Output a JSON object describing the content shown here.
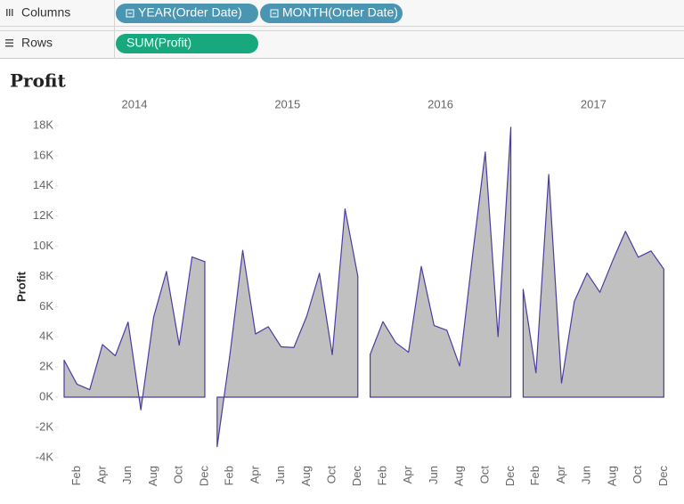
{
  "shelves": {
    "columns": {
      "label": "Columns",
      "pills": [
        "YEAR(Order Date)",
        "MONTH(Order Date)"
      ]
    },
    "rows": {
      "label": "Rows",
      "pills": [
        "SUM(Profit)"
      ]
    }
  },
  "chart_data": {
    "type": "area",
    "title": "Profit",
    "y_label": "Profit",
    "categories": [
      null,
      "Feb",
      null,
      "Apr",
      null,
      "Jun",
      null,
      "Aug",
      null,
      "Oct",
      null,
      "Dec"
    ],
    "series": [
      {
        "name": "2014",
        "values": [
          2450,
          862,
          499,
          3489,
          2739,
          4977,
          -841,
          5318,
          8328,
          3448,
          9292,
          8983
        ]
      },
      {
        "name": "2015",
        "values": [
          -3281,
          2813,
          9732,
          4188,
          4668,
          3336,
          3289,
          5356,
          8210,
          2817,
          12474,
          8016
        ]
      },
      {
        "name": "2016",
        "values": [
          2825,
          5004,
          3612,
          2977,
          8662,
          4750,
          4433,
          2063,
          9329,
          16243,
          4011,
          17885
        ]
      },
      {
        "name": "2017",
        "values": [
          7140,
          1613,
          14752,
          933,
          6342,
          8223,
          6952,
          9041,
          10991,
          9275,
          9690,
          8483
        ]
      }
    ],
    "color": "#4b3ca0",
    "fill": "#c0c0c0",
    "ylim": [
      -4400,
      18800
    ],
    "yticks": [
      {
        "value": -4000,
        "label": "-4K"
      },
      {
        "value": -2000,
        "label": "-2K"
      },
      {
        "value": 0,
        "label": "0K"
      },
      {
        "value": 2000,
        "label": "2K"
      },
      {
        "value": 4000,
        "label": "4K"
      },
      {
        "value": 6000,
        "label": "6K"
      },
      {
        "value": 8000,
        "label": "8K"
      },
      {
        "value": 10000,
        "label": "10K"
      },
      {
        "value": 12000,
        "label": "12K"
      },
      {
        "value": 14000,
        "label": "14K"
      },
      {
        "value": 16000,
        "label": "16K"
      },
      {
        "value": 18000,
        "label": "18K"
      }
    ]
  }
}
